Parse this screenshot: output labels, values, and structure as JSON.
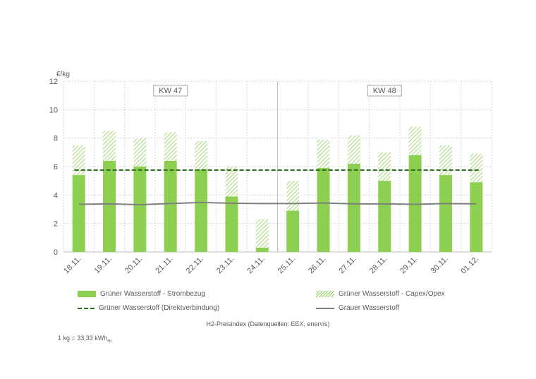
{
  "chart_data": {
    "type": "bar",
    "ylabel": "€/kg",
    "ylim": [
      0,
      12
    ],
    "yticks": [
      0,
      2,
      4,
      6,
      8,
      10,
      12
    ],
    "grid": true,
    "legend_position": "bottom",
    "categories": [
      "18.11.",
      "19.11.",
      "20.11.",
      "21.11.",
      "22.11.",
      "23.11.",
      "24.11.",
      "25.11.",
      "26.11.",
      "27.11.",
      "28.11.",
      "29.11.",
      "30.11.",
      "01.12."
    ],
    "week_labels": [
      {
        "label": "KW 47",
        "from": "18.11.",
        "to": "24.11."
      },
      {
        "label": "KW 48",
        "from": "25.11.",
        "to": "01.12."
      }
    ],
    "series": [
      {
        "name": "Grüner Wasserstoff - Strombezug",
        "kind": "stacked-bar",
        "color": "#8dcf50",
        "values": [
          5.4,
          6.4,
          6.0,
          6.4,
          5.8,
          3.9,
          0.3,
          2.9,
          5.9,
          6.2,
          5.0,
          6.8,
          5.4,
          4.9
        ]
      },
      {
        "name": "Grüner Wasserstoff - Capex/Opex",
        "kind": "stacked-bar-hatched",
        "color": "#8dcf50",
        "values": [
          2.1,
          2.1,
          2.0,
          2.0,
          2.0,
          2.1,
          2.0,
          2.1,
          2.0,
          2.0,
          2.0,
          2.0,
          2.1,
          2.0
        ]
      },
      {
        "name": "Grüner Wasserstoff (Direktverbindung)",
        "kind": "dashed-line",
        "color": "#2e6f1f",
        "values": [
          5.75,
          5.75,
          5.75,
          5.75,
          5.75,
          5.75,
          5.75,
          5.75,
          5.75,
          5.75,
          5.75,
          5.75,
          5.75,
          5.75
        ]
      },
      {
        "name": "Grauer Wasserstoff",
        "kind": "line",
        "color": "#7f7f7f",
        "values": [
          3.35,
          3.38,
          3.32,
          3.4,
          3.48,
          3.42,
          3.4,
          3.4,
          3.44,
          3.38,
          3.38,
          3.35,
          3.4,
          3.38
        ]
      }
    ]
  },
  "source_note": "H2-Preisindex (Datenquellen: EEX, enervis)",
  "footnote": {
    "text": "1 kg = 33,33 kWh",
    "subscript": "Hi"
  }
}
